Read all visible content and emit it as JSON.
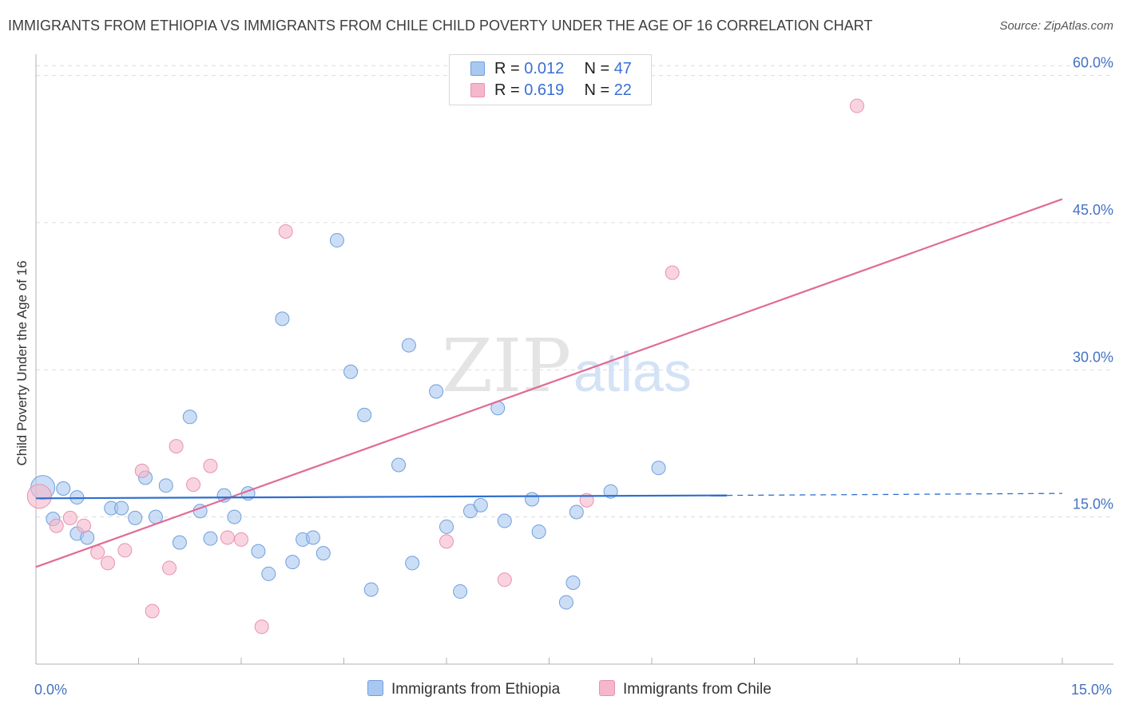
{
  "title": "IMMIGRANTS FROM ETHIOPIA VS IMMIGRANTS FROM CHILE CHILD POVERTY UNDER THE AGE OF 16 CORRELATION CHART",
  "source": "Source: ZipAtlas.com",
  "watermark": {
    "zip": "ZIP",
    "atlas": "atlas"
  },
  "colors": {
    "ethiopia_fill": "#a9c8f0",
    "ethiopia_stroke": "#6f9fdc",
    "ethiopia_line": "#2f6fce",
    "chile_fill": "#f5b8cb",
    "chile_stroke": "#e892ad",
    "chile_line": "#e06b96",
    "tick_label": "#4472c4",
    "grid": "#dcdcdc"
  },
  "legend": {
    "rows": [
      {
        "r_label": "R = ",
        "r_value": "0.012",
        "n_label": "N = ",
        "n_value": "47"
      },
      {
        "r_label": "R = ",
        "r_value": "0.619",
        "n_label": "N = ",
        "n_value": "22"
      }
    ],
    "series": [
      "Immigrants from Ethiopia",
      "Immigrants from Chile"
    ]
  },
  "chart_data": {
    "type": "scatter",
    "title": "IMMIGRANTS FROM ETHIOPIA VS IMMIGRANTS FROM CHILE CHILD POVERTY UNDER THE AGE OF 16 CORRELATION CHART",
    "xlabel": "",
    "ylabel": "Child Poverty Under the Age of 16",
    "xlim": [
      0,
      15
    ],
    "ylim": [
      0,
      62
    ],
    "x_tick_labels": [
      {
        "value": 0,
        "label": "0.0%"
      },
      {
        "value": 15,
        "label": "15.0%"
      }
    ],
    "y_ticks": [
      {
        "value": 15,
        "label": "15.0%"
      },
      {
        "value": 30,
        "label": "30.0%"
      },
      {
        "value": 45,
        "label": "45.0%"
      },
      {
        "value": 60,
        "label": "60.0%"
      }
    ],
    "grid": true,
    "legend_position": "top-center",
    "series": [
      {
        "name": "Immigrants from Ethiopia",
        "r": 0.012,
        "n": 47,
        "points": [
          [
            0.1,
            18.0
          ],
          [
            0.4,
            17.9
          ],
          [
            0.25,
            14.8
          ],
          [
            0.6,
            17.0
          ],
          [
            0.6,
            13.3
          ],
          [
            0.75,
            12.9
          ],
          [
            1.1,
            15.9
          ],
          [
            1.25,
            15.9
          ],
          [
            1.45,
            14.9
          ],
          [
            1.6,
            19.0
          ],
          [
            1.75,
            15.0
          ],
          [
            1.9,
            18.2
          ],
          [
            2.1,
            12.4
          ],
          [
            2.25,
            25.2
          ],
          [
            2.4,
            15.6
          ],
          [
            2.55,
            12.8
          ],
          [
            2.75,
            17.2
          ],
          [
            2.9,
            15.0
          ],
          [
            3.1,
            17.4
          ],
          [
            3.25,
            11.5
          ],
          [
            3.4,
            9.2
          ],
          [
            3.6,
            35.2
          ],
          [
            3.75,
            10.4
          ],
          [
            3.9,
            12.7
          ],
          [
            4.05,
            12.9
          ],
          [
            4.2,
            11.3
          ],
          [
            4.4,
            43.2
          ],
          [
            4.6,
            29.8
          ],
          [
            4.8,
            25.4
          ],
          [
            4.9,
            7.6
          ],
          [
            5.3,
            20.3
          ],
          [
            5.45,
            32.5
          ],
          [
            5.5,
            10.3
          ],
          [
            5.85,
            27.8
          ],
          [
            6.0,
            14.0
          ],
          [
            6.2,
            7.4
          ],
          [
            6.35,
            15.6
          ],
          [
            6.5,
            16.2
          ],
          [
            6.75,
            26.1
          ],
          [
            6.85,
            14.6
          ],
          [
            7.25,
            16.8
          ],
          [
            7.35,
            13.5
          ],
          [
            7.75,
            6.3
          ],
          [
            7.85,
            8.3
          ],
          [
            7.9,
            15.5
          ],
          [
            8.4,
            17.6
          ],
          [
            9.1,
            20.0
          ]
        ],
        "trend": {
          "x": [
            0,
            10.1
          ],
          "y": [
            16.9,
            17.2
          ]
        },
        "trend_dashed": {
          "x": [
            10.1,
            15
          ],
          "y": [
            17.2,
            17.4
          ]
        }
      },
      {
        "name": "Immigrants from Chile",
        "r": 0.619,
        "n": 22,
        "points": [
          [
            0.05,
            17.1
          ],
          [
            0.3,
            14.1
          ],
          [
            0.5,
            14.9
          ],
          [
            0.7,
            14.1
          ],
          [
            0.9,
            11.4
          ],
          [
            1.05,
            10.3
          ],
          [
            1.3,
            11.6
          ],
          [
            1.55,
            19.7
          ],
          [
            1.7,
            5.4
          ],
          [
            1.95,
            9.8
          ],
          [
            2.05,
            22.2
          ],
          [
            2.3,
            18.3
          ],
          [
            2.55,
            20.2
          ],
          [
            2.8,
            12.9
          ],
          [
            3.0,
            12.7
          ],
          [
            3.3,
            3.8
          ],
          [
            3.65,
            44.1
          ],
          [
            6.0,
            12.5
          ],
          [
            6.85,
            8.6
          ],
          [
            8.05,
            16.7
          ],
          [
            9.3,
            39.9
          ],
          [
            12.0,
            56.9
          ]
        ],
        "trend": {
          "x": [
            0,
            15
          ],
          "y": [
            9.9,
            47.4
          ]
        }
      }
    ]
  }
}
